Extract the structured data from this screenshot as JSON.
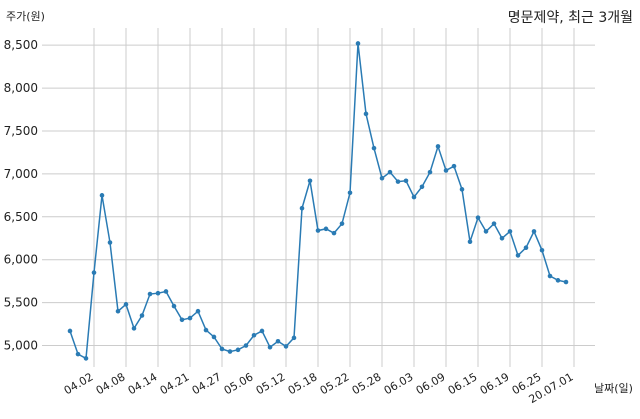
{
  "chart_data": {
    "type": "line",
    "title": "명문제약, 최근 3개월",
    "ylabel": "주가(원)",
    "xlabel": "날짜(일)",
    "grid": true,
    "line_color": "#2a7bb4",
    "ylim": [
      4750,
      8700
    ],
    "yticks": [
      5000,
      5500,
      6000,
      6500,
      7000,
      7500,
      8000,
      8500
    ],
    "ytick_labels": [
      "5,000",
      "5,500",
      "6,000",
      "6,500",
      "7,000",
      "7,500",
      "8,000",
      "8,500"
    ],
    "xtick_labels": [
      "04.02",
      "04.08",
      "04.14",
      "04.21",
      "04.27",
      "05.06",
      "05.12",
      "05.18",
      "05.22",
      "05.28",
      "06.03",
      "06.09",
      "06.15",
      "06.19",
      "06.25",
      "20.07.01"
    ],
    "xtick_positions": [
      3,
      7,
      11,
      15,
      19,
      23,
      27,
      31,
      35,
      39,
      43,
      47,
      51,
      55,
      59,
      63
    ],
    "series": [
      {
        "name": "",
        "values": [
          5170,
          4900,
          4850,
          5850,
          6750,
          6200,
          5400,
          5480,
          5200,
          5350,
          5600,
          5610,
          5630,
          5460,
          5300,
          5320,
          5400,
          5180,
          5100,
          4960,
          4930,
          4950,
          5000,
          5120,
          5170,
          4980,
          5050,
          4990,
          5090,
          6600,
          6920,
          6340,
          6360,
          6310,
          6420,
          6780,
          8520,
          7700,
          7300,
          6950,
          7020,
          6910,
          6920,
          6730,
          6850,
          7020,
          7320,
          7040,
          7090,
          6820,
          6210,
          6490,
          6330,
          6420,
          6250,
          6330,
          6050,
          6140,
          6330,
          6110,
          5810,
          5760,
          5740
        ]
      }
    ]
  }
}
